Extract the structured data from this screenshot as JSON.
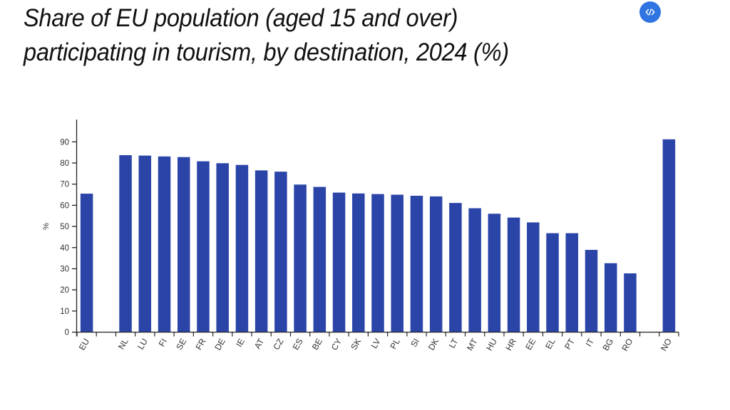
{
  "header": {
    "title": "Share of EU population (aged 15 and over) participating in tourism, by destination, 2024 (%)",
    "embed_icon": "code-embed-icon",
    "embed_color": "#2f74e0"
  },
  "chart_data": {
    "type": "bar",
    "title": "Share of EU population (aged 15 and over) participating in tourism, by destination, 2024 (%)",
    "xlabel": "",
    "ylabel": "%",
    "ylim": [
      0,
      100
    ],
    "yticks": [
      0,
      10,
      20,
      30,
      40,
      50,
      60,
      70,
      80,
      90
    ],
    "grid": false,
    "legend": null,
    "bar_color": "#2A44A8",
    "categories": [
      "EU",
      "",
      "NL",
      "LU",
      "FI",
      "SE",
      "FR",
      "DE",
      "IE",
      "AT",
      "CZ",
      "ES",
      "BE",
      "CY",
      "SK",
      "LV",
      "PL",
      "SI",
      "DK",
      "LT",
      "MT",
      "HU",
      "HR",
      "EE",
      "EL",
      "PT",
      "IT",
      "BG",
      "RO",
      "",
      "NO"
    ],
    "values": [
      65.5,
      null,
      83.7,
      83.5,
      83.1,
      82.8,
      80.8,
      79.9,
      79.1,
      76.5,
      75.9,
      69.8,
      68.7,
      66.0,
      65.6,
      65.3,
      65.0,
      64.5,
      64.2,
      61.1,
      58.6,
      56.0,
      54.2,
      51.9,
      46.8,
      46.8,
      38.9,
      32.6,
      27.8,
      null,
      91.2
    ]
  }
}
